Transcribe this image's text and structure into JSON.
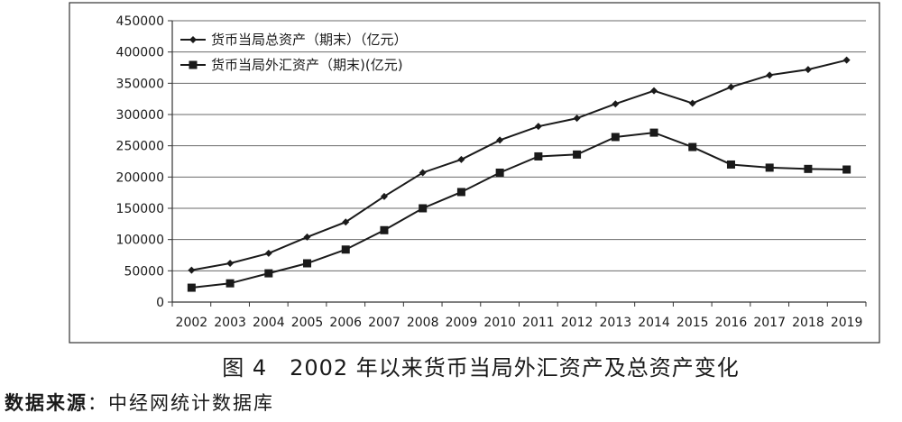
{
  "chart_data": {
    "type": "line",
    "title": "图 4　2002 年以来货币当局外汇资产及总资产变化",
    "categories": [
      "2002",
      "2003",
      "2004",
      "2005",
      "2006",
      "2007",
      "2008",
      "2009",
      "2010",
      "2011",
      "2012",
      "2013",
      "2014",
      "2015",
      "2016",
      "2017",
      "2018",
      "2019"
    ],
    "series": [
      {
        "name": "货币当局总资产（期末）（亿元）",
        "marker": "diamond",
        "color": "#1a1a1a",
        "values": [
          51000,
          62000,
          78000,
          104000,
          128000,
          169000,
          207000,
          228000,
          259000,
          281000,
          294000,
          317000,
          338000,
          318000,
          344000,
          363000,
          372000,
          387000
        ]
      },
      {
        "name": "货币当局外汇资产（期末)(亿元)",
        "marker": "square",
        "color": "#1a1a1a",
        "values": [
          23000,
          30000,
          46000,
          62000,
          84000,
          115000,
          150000,
          176000,
          207000,
          233000,
          236000,
          264000,
          271000,
          248000,
          220000,
          215000,
          213000,
          212000
        ]
      }
    ],
    "ylim": [
      0,
      450000
    ],
    "yticks": [
      0,
      50000,
      100000,
      150000,
      200000,
      250000,
      300000,
      350000,
      400000,
      450000
    ],
    "grid": "horizontal",
    "legend": "top-left",
    "grid_color": "#6a6a6a"
  },
  "source": {
    "label": "数据来源",
    "text": "：中经网统计数据库"
  }
}
